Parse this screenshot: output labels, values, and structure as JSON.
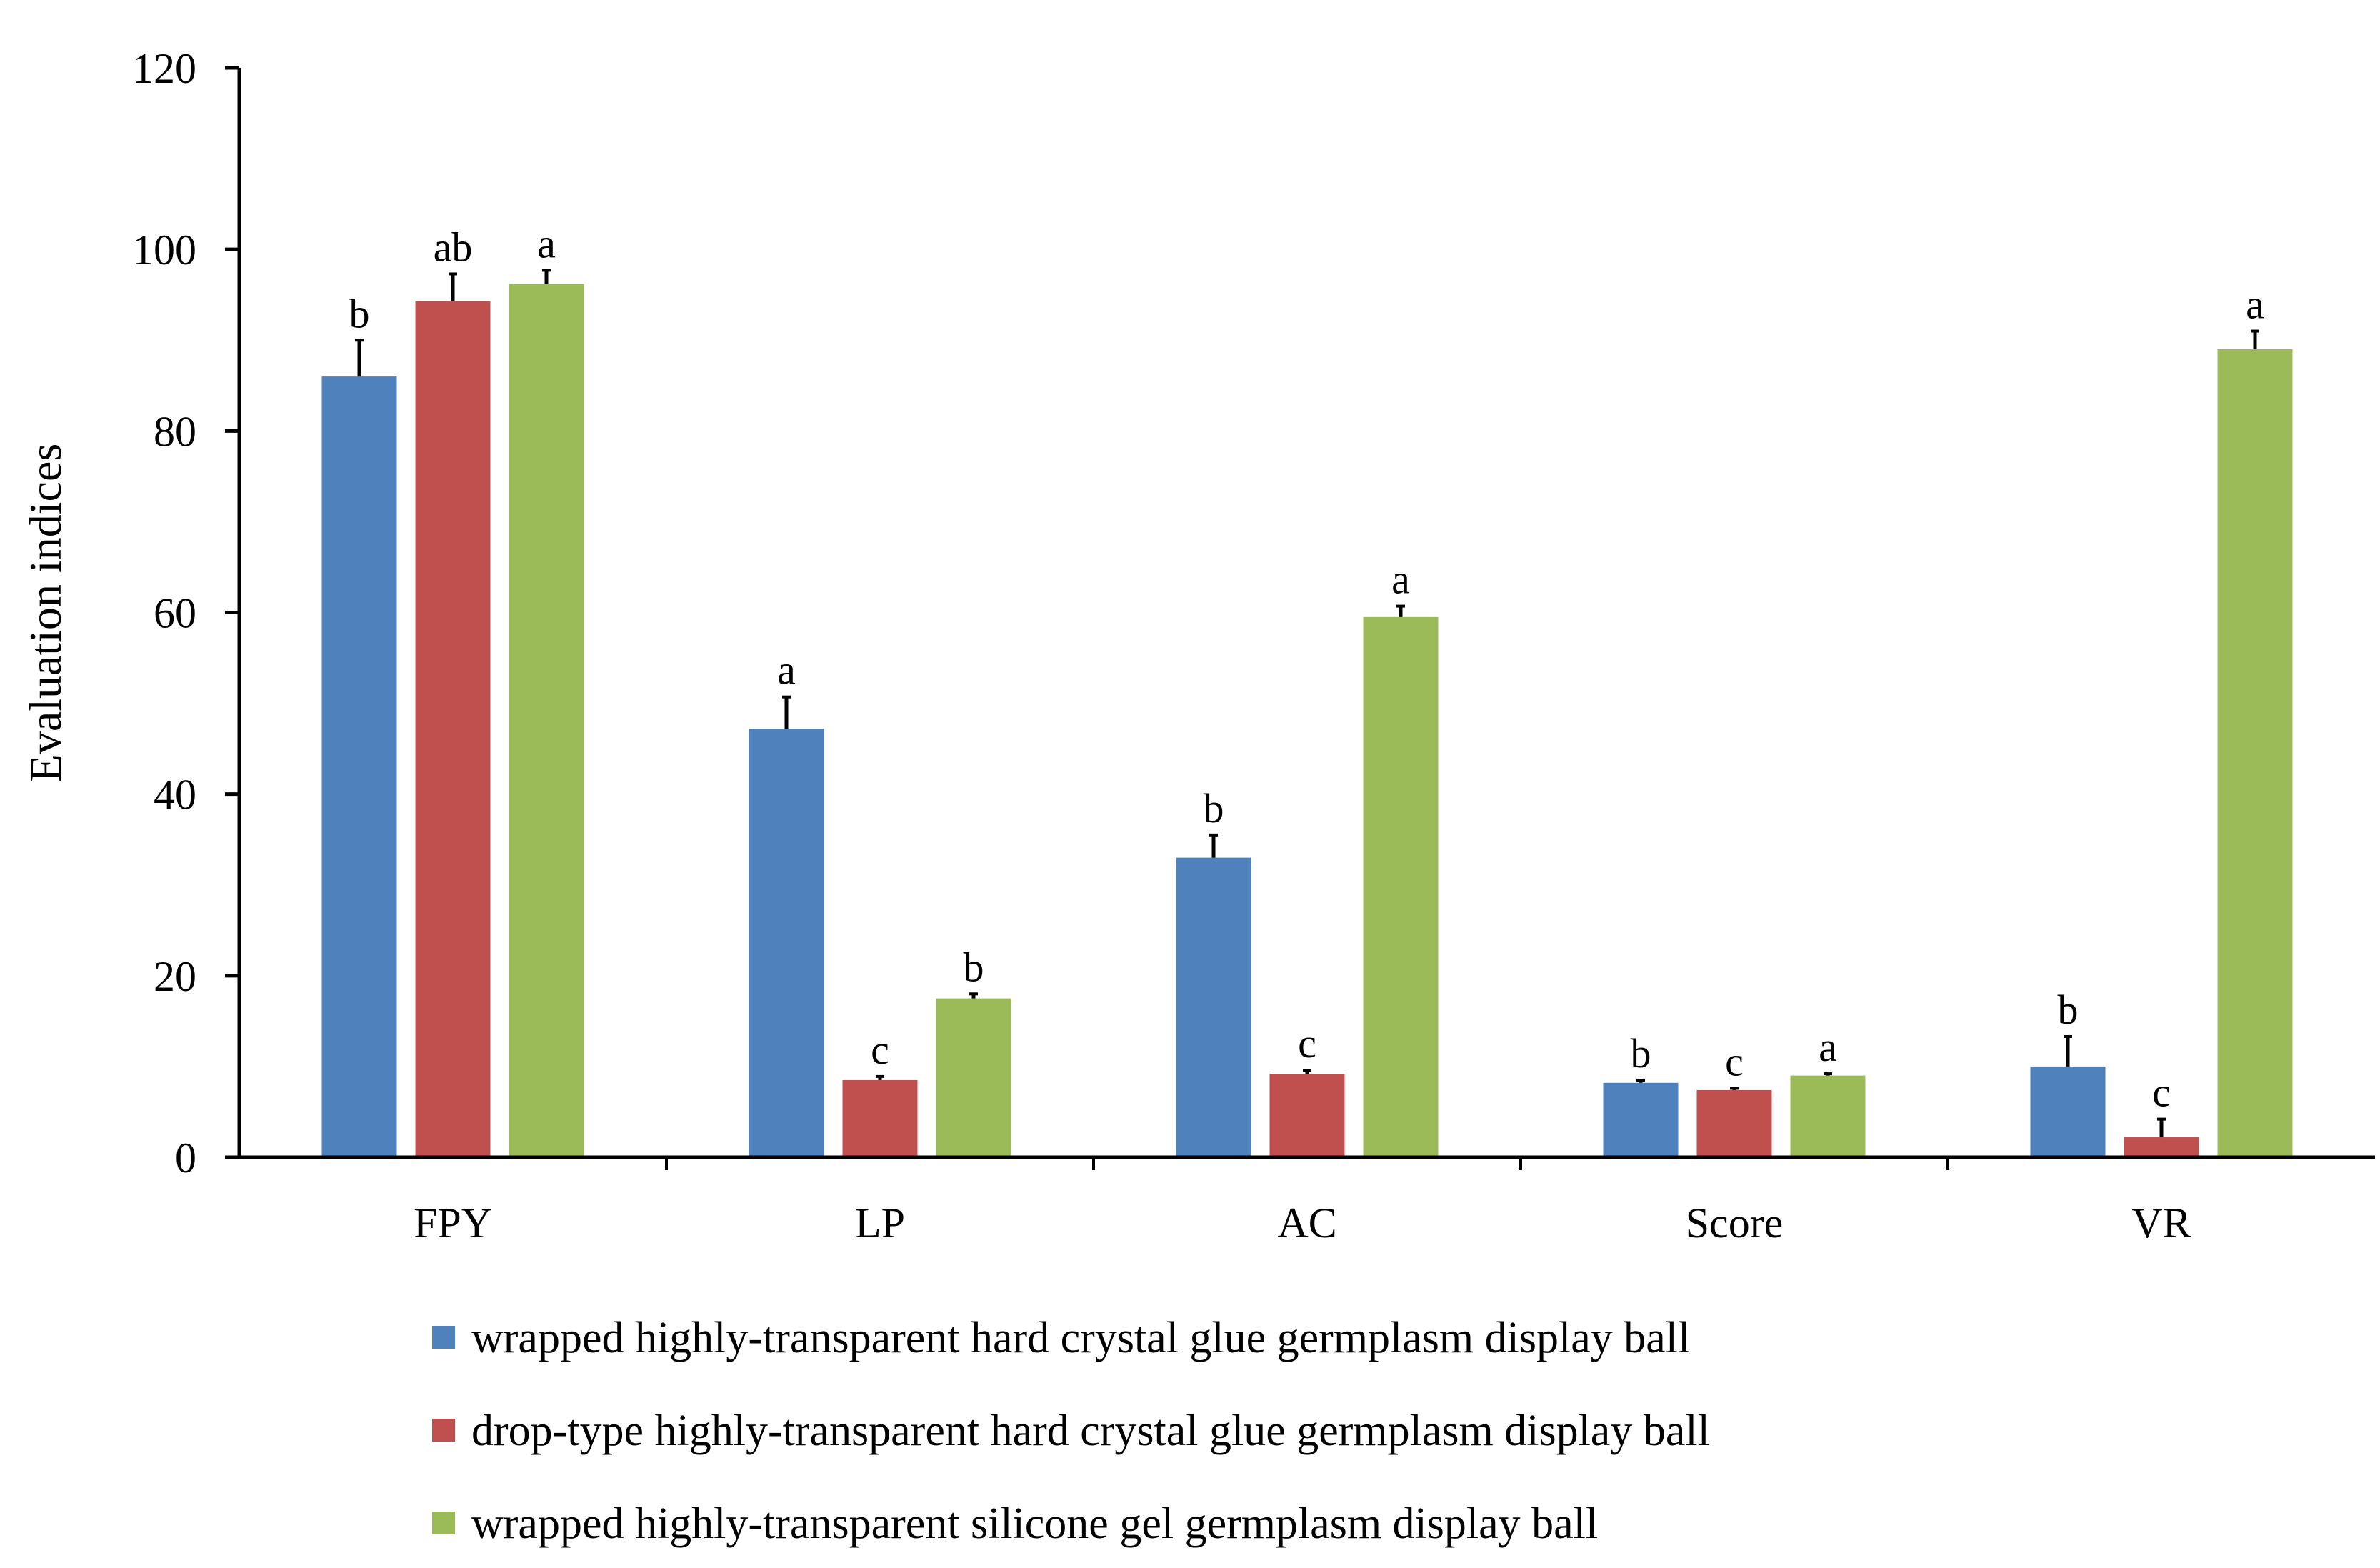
{
  "chart_data": {
    "type": "bar",
    "title": "",
    "xlabel": "",
    "ylabel": "Evaluation indices",
    "ylim": [
      0,
      120
    ],
    "yticks": [
      0,
      20,
      40,
      60,
      80,
      100,
      120
    ],
    "ytick_labels": [
      "0",
      "20",
      "40",
      "60",
      "80",
      "100",
      "120"
    ],
    "grid": false,
    "legend_position": "bottom",
    "categories": [
      "FPY",
      "LP",
      "AC",
      "Score",
      "VR"
    ],
    "series": [
      {
        "name": "wrapped highly-transparent hard crystal glue germplasm display ball",
        "color": "#4F81BD",
        "values": [
          86,
          47.2,
          33,
          8.2,
          10
        ],
        "errors": [
          4,
          3.5,
          2.5,
          0.3,
          3.3
        ],
        "labels": [
          "b",
          "a",
          "b",
          "b",
          "b"
        ]
      },
      {
        "name": "drop-type highly-transparent hard crystal glue germplasm display ball",
        "color": "#C0504D",
        "values": [
          94.3,
          8.5,
          9.2,
          7.4,
          2.2
        ],
        "errors": [
          3,
          0.4,
          0.4,
          0.2,
          2
        ],
        "labels": [
          "ab",
          "c",
          "c",
          "c",
          "c"
        ]
      },
      {
        "name": "wrapped highly-transparent silicone gel germplasm display ball",
        "color": "#9BBB59",
        "values": [
          96.2,
          17.5,
          59.5,
          9,
          89
        ],
        "errors": [
          1.5,
          0.5,
          1.2,
          0.2,
          2
        ],
        "labels": [
          "a",
          "b",
          "a",
          "a",
          "a"
        ]
      }
    ]
  }
}
